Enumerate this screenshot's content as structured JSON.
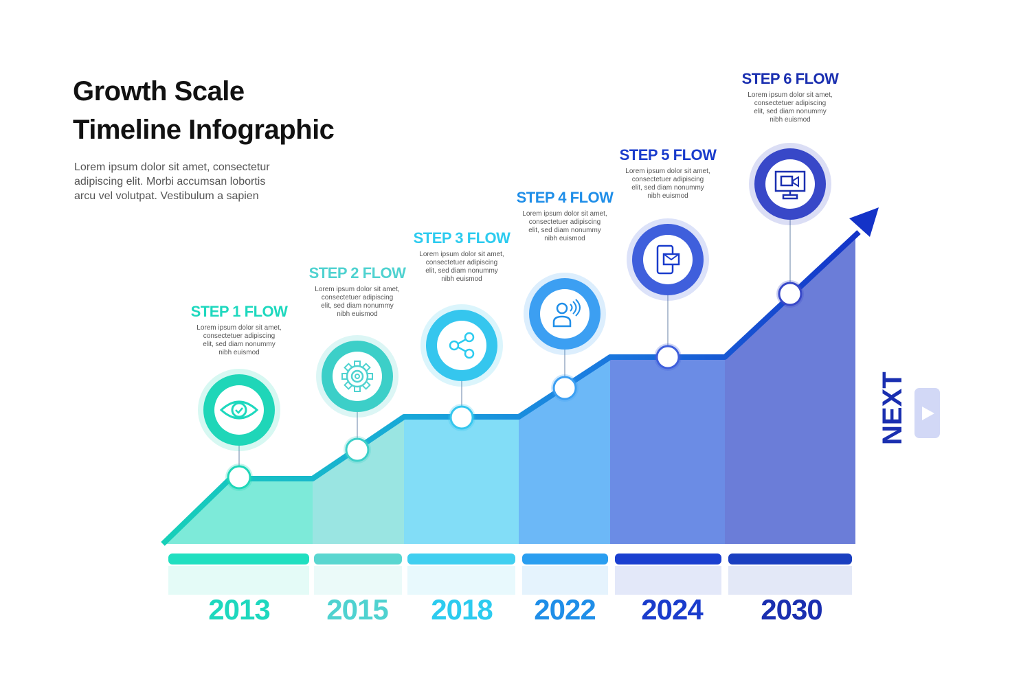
{
  "title": {
    "line1": "Growth Scale",
    "line2": "Timeline Infographic"
  },
  "intro": [
    "Lorem ipsum dolor sit amet, consectetur",
    "adipiscing elit. Morbi accumsan lobortis",
    "arcu vel volutpat. Vestibulum a sapien"
  ],
  "steps": [
    {
      "title": "STEP 1 FLOW",
      "year": "2013",
      "icon": "eye-check-icon",
      "color": "#1ed8be",
      "desc": [
        "Lorem ipsum dolor sit amet,",
        "consectetuer adipiscing",
        "elit, sed diam nonummy",
        "nibh euismod"
      ]
    },
    {
      "title": "STEP 2 FLOW",
      "year": "2015",
      "icon": "gear-icon",
      "color": "#4fd2d0",
      "desc": [
        "Lorem ipsum dolor sit amet,",
        "consectetuer adipiscing",
        "elit, sed diam nonummy",
        "nibh euismod"
      ]
    },
    {
      "title": "STEP 3 FLOW",
      "year": "2018",
      "icon": "share-icon",
      "color": "#2ccbef",
      "desc": [
        "Lorem ipsum dolor sit amet,",
        "consectetuer adipiscing",
        "elit, sed diam nonummy",
        "nibh euismod"
      ]
    },
    {
      "title": "STEP 4 FLOW",
      "year": "2022",
      "icon": "user-voice-icon",
      "color": "#1f8ee8",
      "desc": [
        "Lorem ipsum dolor sit amet,",
        "consectetuer adipiscing",
        "elit, sed diam nonummy",
        "nibh euismod"
      ]
    },
    {
      "title": "STEP 5 FLOW",
      "year": "2024",
      "icon": "phone-mail-icon",
      "color": "#1a3ccc",
      "desc": [
        "Lorem ipsum dolor sit amet,",
        "consectetuer adipiscing",
        "elit, sed diam nonummy",
        "nibh euismod"
      ]
    },
    {
      "title": "STEP 6 FLOW",
      "year": "2030",
      "icon": "monitor-video-icon",
      "color": "#1a2fb0",
      "desc": [
        "Lorem ipsum dolor sit amet,",
        "consectetuer adipiscing",
        "elit, sed diam nonummy",
        "nibh euismod"
      ]
    }
  ],
  "next": {
    "label": "NEXT",
    "icon": "play-icon"
  }
}
